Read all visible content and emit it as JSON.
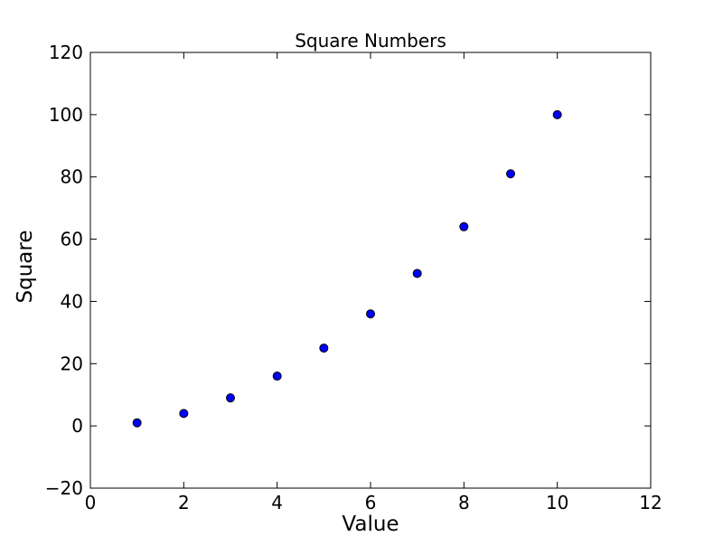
{
  "figure": {
    "background": "#ffffff",
    "spine_color": "#000000"
  },
  "chart_data": {
    "type": "scatter",
    "title": "Square Numbers",
    "xlabel": "Value",
    "ylabel": "Square",
    "x": [
      1,
      2,
      3,
      4,
      5,
      6,
      7,
      8,
      9,
      10
    ],
    "y": [
      1,
      4,
      9,
      16,
      25,
      36,
      49,
      64,
      81,
      100
    ],
    "xlim": [
      0,
      12
    ],
    "ylim": [
      -20,
      120
    ],
    "xtick_values": [
      0,
      2,
      4,
      6,
      8,
      10,
      12
    ],
    "xtick_labels": [
      "0",
      "2",
      "4",
      "6",
      "8",
      "10",
      "12"
    ],
    "ytick_values": [
      -20,
      0,
      20,
      40,
      60,
      80,
      100,
      120
    ],
    "ytick_labels": [
      "−20",
      "0",
      "20",
      "40",
      "60",
      "80",
      "100",
      "120"
    ],
    "grid": false,
    "legend": "none",
    "marker": {
      "shape": "circle",
      "fill": "#0000ff",
      "edge": "#000000"
    }
  }
}
